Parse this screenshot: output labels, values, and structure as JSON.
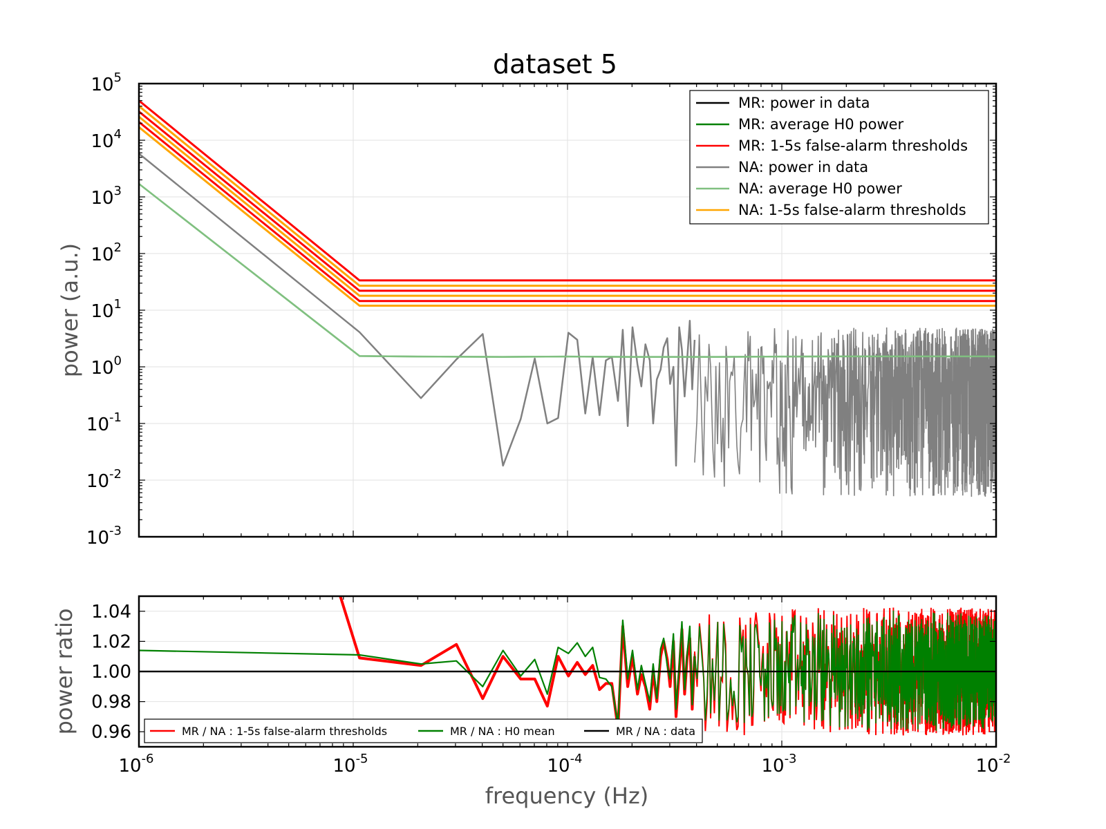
{
  "title": "dataset 5",
  "colors": {
    "mr_data": "#000000",
    "mr_h0": "#008000",
    "mr_thr": "#ff0000",
    "na_data": "#808080",
    "na_h0": "#80c080",
    "na_thr": "#ffa500",
    "ratio_thr": "#ff0000",
    "ratio_h0": "#008000",
    "ratio_data": "#000000"
  },
  "chart_data": [
    {
      "type": "line",
      "title": "dataset 5",
      "xlabel": "",
      "ylabel": "power (a.u.)",
      "xscale": "log",
      "yscale": "log",
      "xlim": [
        1e-06,
        0.01
      ],
      "ylim": [
        0.001,
        100000
      ],
      "grid": true,
      "legend_position": "top-right",
      "y_ticks": [
        {
          "base": "10",
          "exp": "5"
        },
        {
          "base": "10",
          "exp": "4"
        },
        {
          "base": "10",
          "exp": "3"
        },
        {
          "base": "10",
          "exp": "2"
        },
        {
          "base": "10",
          "exp": "1"
        },
        {
          "base": "10",
          "exp": "0"
        },
        {
          "base": "10",
          "exp": "-1"
        },
        {
          "base": "10",
          "exp": "-2"
        },
        {
          "base": "10",
          "exp": "-3"
        }
      ],
      "legend": [
        {
          "label": "MR: power in data",
          "color": "#000000"
        },
        {
          "label": "MR: average H0 power",
          "color": "#008000"
        },
        {
          "label": "MR: 1-5s false-alarm thresholds",
          "color": "#ff0000"
        },
        {
          "label": "NA: power in data",
          "color": "#808080"
        },
        {
          "label": "NA: average H0 power",
          "color": "#80c080"
        },
        {
          "label": "NA: 1-5s false-alarm thresholds",
          "color": "#ffa500"
        }
      ],
      "series": [
        {
          "name": "NA: average H0 power",
          "x": [
            1e-06,
            1.07e-05,
            2e-05,
            5e-05,
            0.0001,
            0.0002,
            0.0005,
            0.001,
            0.002,
            0.005,
            0.01
          ],
          "y": [
            1700,
            1.55,
            1.52,
            1.5,
            1.52,
            1.5,
            1.5,
            1.52,
            1.53,
            1.53,
            1.53
          ]
        },
        {
          "name": "NA: power in data",
          "x": [
            1e-06,
            1.07e-05,
            2.07e-05,
            3.03e-05,
            4.02e-05,
            5e-05,
            6.05e-05,
            7.03e-05,
            8.05e-05,
            9.04e-05,
            0.000101,
            0.000111,
            0.000121,
            0.000131,
            0.000141,
            0.000151,
            0.000161,
            0.000172,
            0.000181,
            0.000191,
            0.000201,
            0.000212,
            0.000221,
            0.000231,
            0.000242,
            0.000251,
            0.000261,
            0.000272,
            0.000281,
            0.000292,
            0.000301,
            0.000312,
            0.000321,
            0.000332,
            0.000342,
            0.000352,
            0.000362,
            0.000372,
            0.000382,
            0.000392
          ],
          "y": [
            5800,
            4.1,
            0.28,
            1.35,
            3.8,
            0.018,
            0.12,
            1.4,
            0.1,
            0.125,
            4.0,
            3.0,
            0.15,
            1.5,
            0.14,
            1.3,
            1.5,
            0.25,
            4.5,
            0.09,
            5.0,
            1.1,
            0.45,
            2.5,
            1.3,
            0.1,
            0.6,
            0.9,
            2.2,
            3.2,
            0.5,
            1.0,
            0.018,
            5.0,
            2.0,
            0.3,
            1.4,
            6.5,
            0.4,
            3.0
          ]
        },
        {
          "name": "MR: 1-5s false-alarm thresholds",
          "x": [
            1e-06,
            1.07e-05,
            0.01
          ],
          "y": [
            50000,
            33.5,
            33.5
          ]
        },
        {
          "name": "NA: 1-5s false-alarm thresholds",
          "x": [
            1e-06,
            1.07e-05,
            0.01
          ],
          "y": [
            40000,
            27,
            27
          ]
        },
        {
          "name": "MR: 1-5s false-alarm thresholds",
          "x": [
            1e-06,
            1.07e-05,
            0.01
          ],
          "y": [
            32000,
            22,
            22
          ]
        },
        {
          "name": "NA: 1-5s false-alarm thresholds",
          "x": [
            1e-06,
            1.07e-05,
            0.01
          ],
          "y": [
            26000,
            18,
            18
          ]
        },
        {
          "name": "MR: 1-5s false-alarm thresholds",
          "x": [
            1e-06,
            1.07e-05,
            0.01
          ],
          "y": [
            21000,
            14.5,
            14.5
          ]
        },
        {
          "name": "NA: 1-5s false-alarm thresholds",
          "x": [
            1e-06,
            1.07e-05,
            0.01
          ],
          "y": [
            17000,
            12,
            12
          ]
        }
      ]
    },
    {
      "type": "line",
      "title": "",
      "xlabel": "frequency (Hz)",
      "ylabel": "power ratio",
      "xscale": "log",
      "yscale": "linear",
      "xlim": [
        1e-06,
        0.01
      ],
      "ylim": [
        0.95,
        1.05
      ],
      "grid": true,
      "legend_position": "bottom",
      "x_ticks": [
        {
          "base": "10",
          "exp": "-6"
        },
        {
          "base": "10",
          "exp": "-5"
        },
        {
          "base": "10",
          "exp": "-4"
        },
        {
          "base": "10",
          "exp": "-3"
        },
        {
          "base": "10",
          "exp": "-2"
        }
      ],
      "y_ticks": [
        "1.04",
        "1.02",
        "1.00",
        "0.98",
        "0.96"
      ],
      "legend": [
        {
          "label": "MR / NA : 1-5s false-alarm thresholds",
          "color": "#ff0000"
        },
        {
          "label": "MR / NA : H0 mean",
          "color": "#008000"
        },
        {
          "label": "MR / NA : data",
          "color": "#000000"
        }
      ],
      "series": [
        {
          "name": "MR / NA : data",
          "x": [
            1e-06,
            0.01
          ],
          "y": [
            1.0,
            1.0
          ]
        },
        {
          "name": "MR / NA : 1-5s false-alarm thresholds",
          "x": [
            8.7e-06,
            1.07e-05,
            2.07e-05,
            3.03e-05,
            4.02e-05,
            5e-05,
            6.05e-05,
            7.03e-05,
            8.05e-05,
            9.04e-05,
            0.000101,
            0.000111,
            0.000121,
            0.000131,
            0.000141,
            0.000151,
            0.000161,
            0.000172,
            0.000181,
            0.000191,
            0.000201,
            0.000212,
            0.000221,
            0.000231,
            0.000242,
            0.000251,
            0.000261,
            0.000272,
            0.000281,
            0.000292,
            0.000301,
            0.000312,
            0.000321,
            0.000332,
            0.000342,
            0.000352,
            0.000362,
            0.000372,
            0.000382,
            0.000392
          ],
          "y": [
            1.05,
            1.009,
            1.004,
            1.018,
            0.982,
            1.01,
            0.995,
            0.995,
            0.977,
            1.01,
            0.997,
            1.006,
            0.998,
            1.004,
            0.988,
            0.992,
            0.992,
            0.962,
            1.03,
            0.99,
            1.01,
            0.985,
            0.998,
            0.99,
            0.975,
            1.0,
            0.98,
            1.01,
            1.02,
            1.008,
            0.99,
            1.02,
            0.97,
            1.0,
            1.028,
            0.985,
            1.01,
            1.022,
            0.975,
            1.01
          ]
        },
        {
          "name": "MR / NA : H0 mean",
          "x": [
            1e-06,
            1.07e-05,
            2.07e-05,
            3.03e-05,
            4.02e-05,
            5e-05,
            6.05e-05,
            7.03e-05,
            8.05e-05,
            9.04e-05,
            0.000101,
            0.000111,
            0.000121,
            0.000131,
            0.000141,
            0.000151,
            0.000161,
            0.000172,
            0.000181,
            0.000191,
            0.000201,
            0.000212,
            0.000221,
            0.000231,
            0.000242,
            0.000251,
            0.000261,
            0.000272,
            0.000281,
            0.000292,
            0.000301,
            0.000312,
            0.000321,
            0.000332,
            0.000342,
            0.000352,
            0.000362,
            0.000372,
            0.000382,
            0.000392
          ],
          "y": [
            1.014,
            1.011,
            1.005,
            1.007,
            0.99,
            1.014,
            0.997,
            1.008,
            0.985,
            1.016,
            1.012,
            1.019,
            1.01,
            1.016,
            0.996,
            0.995,
            0.99,
            0.965,
            1.034,
            0.995,
            1.014,
            0.988,
            1.004,
            0.992,
            0.98,
            1.005,
            0.982,
            1.015,
            1.022,
            1.004,
            0.995,
            1.025,
            0.975,
            1.004,
            1.033,
            0.988,
            1.012,
            1.03,
            0.978,
            1.012
          ]
        }
      ]
    }
  ]
}
